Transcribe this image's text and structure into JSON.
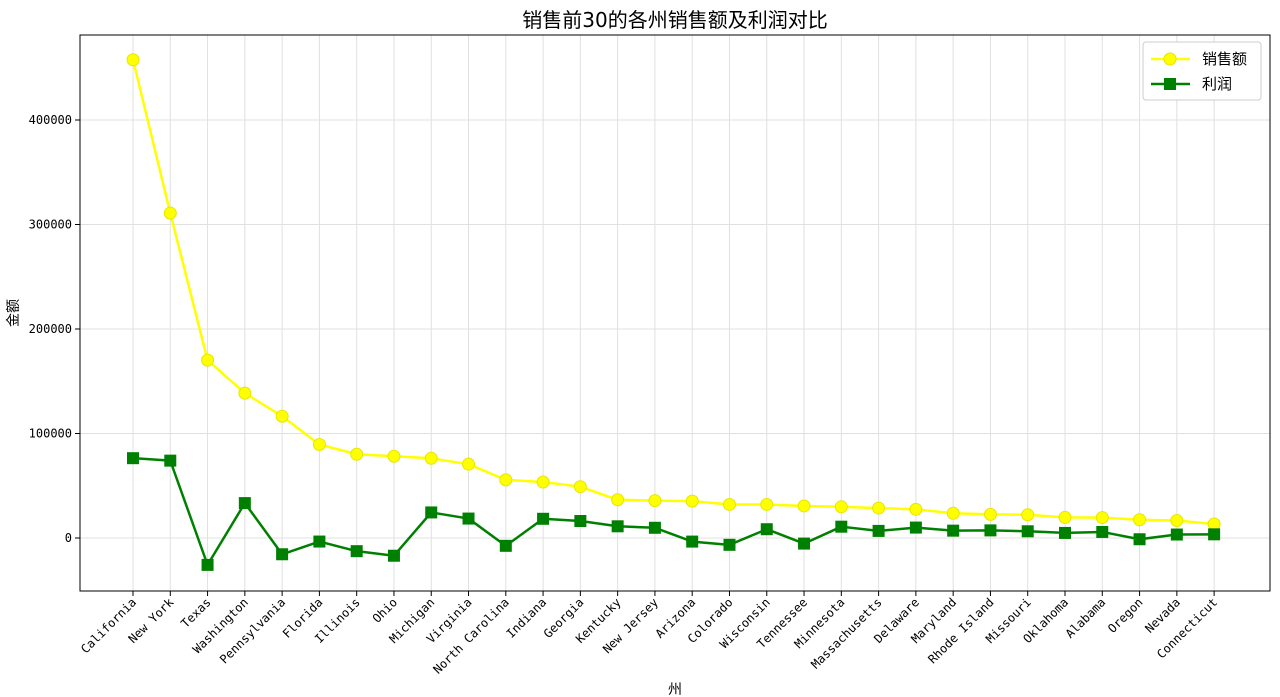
{
  "chart_data": {
    "type": "line",
    "title": "销售前30的各州销售额及利润对比",
    "xlabel": "州",
    "ylabel": "金额",
    "ylim": [
      -50000,
      480000
    ],
    "yticks": [
      0,
      100000,
      200000,
      300000,
      400000
    ],
    "grid": true,
    "legend_position": "top-right",
    "categories": [
      "California",
      "New York",
      "Texas",
      "Washington",
      "Pennsylvania",
      "Florida",
      "Illinois",
      "Ohio",
      "Michigan",
      "Virginia",
      "North Carolina",
      "Indiana",
      "Georgia",
      "Kentucky",
      "New Jersey",
      "Arizona",
      "Colorado",
      "Wisconsin",
      "Tennessee",
      "Minnesota",
      "Massachusetts",
      "Delaware",
      "Maryland",
      "Rhode Island",
      "Missouri",
      "Oklahoma",
      "Alabama",
      "Oregon",
      "Nevada",
      "Connecticut"
    ],
    "series": [
      {
        "name": "销售额",
        "color": "#ffff00",
        "marker": "circle",
        "values": [
          457688,
          310876,
          170188,
          138641,
          116512,
          89474,
          80166,
          78258,
          76270,
          70637,
          55603,
          53555,
          49096,
          36592,
          35764,
          35282,
          32108,
          32115,
          30662,
          29863,
          28634,
          27451,
          23706,
          22628,
          22205,
          19683,
          19511,
          17431,
          16729,
          13385
        ]
      },
      {
        "name": "利润",
        "color": "#008000",
        "marker": "square",
        "values": [
          76381,
          74039,
          -25729,
          33403,
          -15560,
          -3399,
          -12608,
          -16971,
          24463,
          18598,
          -7491,
          18383,
          16250,
          11200,
          9773,
          -3428,
          -6528,
          8402,
          -5342,
          10823,
          6786,
          9977,
          7031,
          7286,
          6436,
          4854,
          5787,
          -1191,
          3317,
          3511
        ]
      }
    ]
  }
}
